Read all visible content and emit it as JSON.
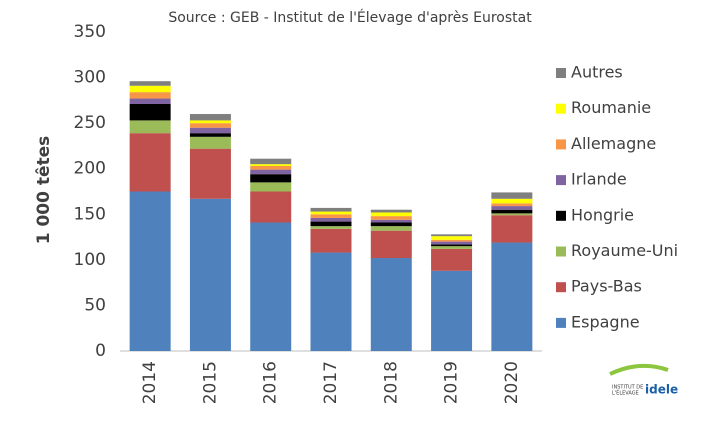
{
  "chart_data": {
    "type": "stacked_bar",
    "subtitle": "Source : GEB - Institut de l'Élevage d'après Eurostat",
    "y_label": "1 000 têtes",
    "categories": [
      "2014",
      "2015",
      "2016",
      "2017",
      "2018",
      "2019",
      "2020"
    ],
    "series": [
      {
        "name": "Espagne",
        "color": "#4f81bd",
        "values": [
          175,
          167,
          141,
          108,
          102,
          88,
          119
        ]
      },
      {
        "name": "Pays-Bas",
        "color": "#c0504d",
        "values": [
          64,
          55,
          34,
          26,
          30,
          24,
          30
        ]
      },
      {
        "name": "Royaume-Uni",
        "color": "#9bbb59",
        "values": [
          14,
          13,
          10,
          3,
          5,
          3,
          2
        ]
      },
      {
        "name": "Hongrie",
        "color": "#000000",
        "values": [
          18,
          4,
          9,
          5,
          4,
          2,
          4
        ]
      },
      {
        "name": "Irlande",
        "color": "#8064a2",
        "values": [
          6,
          6,
          5,
          4,
          3,
          3,
          4
        ]
      },
      {
        "name": "Allemagne",
        "color": "#f79646",
        "values": [
          7,
          5,
          4,
          4,
          4,
          2,
          3
        ]
      },
      {
        "name": "Roumanie",
        "color": "#ffff00",
        "values": [
          7,
          3,
          2,
          3,
          4,
          4,
          5
        ]
      },
      {
        "name": "Autres",
        "color": "#7f7f7f",
        "values": [
          5,
          7,
          6,
          4,
          3,
          2,
          7
        ]
      }
    ],
    "ylim": [
      0,
      350
    ],
    "yticks": [
      0,
      50,
      100,
      150,
      200,
      250,
      300,
      350
    ],
    "grid": false,
    "legend": "right",
    "logo": {
      "line1": "INSTITUT DE",
      "line2": "L'ÉLEVAGE",
      "brand": "idele"
    }
  }
}
